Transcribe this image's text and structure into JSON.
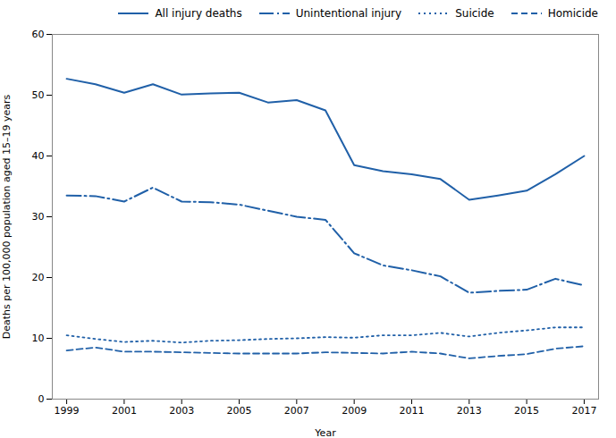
{
  "chart_data": {
    "type": "line",
    "xlabel": "Year",
    "ylabel": "Deaths per 100,000 population aged 15–19 years",
    "x": [
      1999,
      2000,
      2001,
      2002,
      2003,
      2004,
      2005,
      2006,
      2007,
      2008,
      2009,
      2010,
      2011,
      2012,
      2013,
      2014,
      2015,
      2016,
      2017
    ],
    "series": [
      {
        "name": "All injury deaths",
        "color": "#2060a8",
        "line_style": "solid",
        "values": [
          52.7,
          51.8,
          50.4,
          51.8,
          50.1,
          50.3,
          50.4,
          48.8,
          49.2,
          47.5,
          38.5,
          37.5,
          37.0,
          36.2,
          32.8,
          33.5,
          34.3,
          37.0,
          40.0
        ]
      },
      {
        "name": "Unintentional injury",
        "color": "#2060a8",
        "line_style": "dashdot",
        "values": [
          33.5,
          33.4,
          32.5,
          34.8,
          32.5,
          32.4,
          32.0,
          31.0,
          30.0,
          29.5,
          24.0,
          22.0,
          21.2,
          20.2,
          17.5,
          17.8,
          18.0,
          19.8,
          18.7
        ]
      },
      {
        "name": "Suicide",
        "color": "#2060a8",
        "line_style": "dotted",
        "values": [
          10.5,
          9.9,
          9.4,
          9.6,
          9.3,
          9.6,
          9.7,
          9.9,
          10.0,
          10.2,
          10.1,
          10.5,
          10.5,
          10.9,
          10.3,
          10.9,
          11.3,
          11.8,
          11.8
        ]
      },
      {
        "name": "Homicide",
        "color": "#2060a8",
        "line_style": "dashed",
        "values": [
          8.0,
          8.5,
          7.8,
          7.8,
          7.7,
          7.6,
          7.5,
          7.5,
          7.5,
          7.7,
          7.6,
          7.5,
          7.8,
          7.5,
          6.7,
          7.1,
          7.4,
          8.3,
          8.7
        ]
      }
    ],
    "xlim": [
      1998.5,
      2017.5
    ],
    "ylim": [
      0,
      60
    ],
    "xticks": [
      1999,
      2001,
      2003,
      2005,
      2007,
      2009,
      2011,
      2013,
      2015,
      2017
    ],
    "yticks": [
      0,
      10,
      20,
      30,
      40,
      50,
      60
    ],
    "legend": "upper right"
  }
}
